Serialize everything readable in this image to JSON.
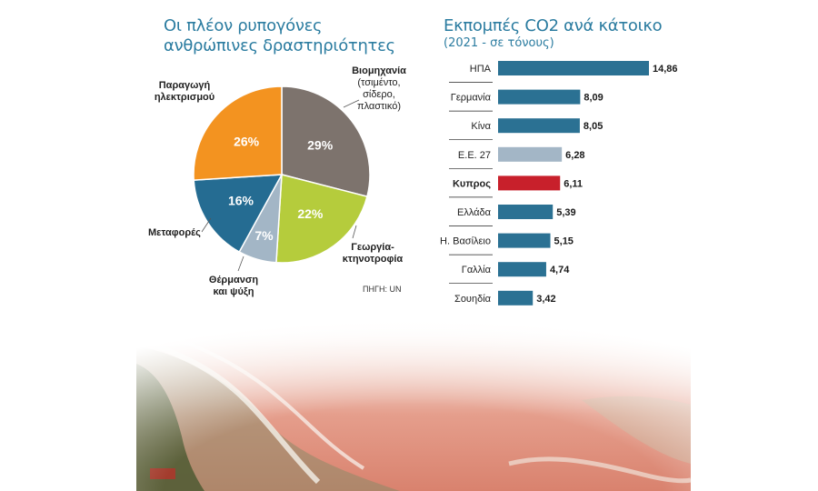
{
  "colors": {
    "title": "#2b7ca0",
    "industry": "#7d736d",
    "electricity": "#f39320",
    "agriculture": "#b5cc3c",
    "heating": "#a3b6c6",
    "transport": "#256c92",
    "bar_default": "#2b7193",
    "bar_eu": "#a3b6c6",
    "bar_cyprus": "#c8202b"
  },
  "chart_data": [
    {
      "type": "pie",
      "title": "Οι πλέον ρυπογόνες ανθρώπινες δραστηριότητες",
      "title_lines": [
        "Οι πλέον ρυπογόνες",
        "ανθρώπινες δραστηριότητες"
      ],
      "slices": [
        {
          "key": "industry",
          "label_lines": [
            "Βιομηχανία",
            "(τσιμέντο,",
            "σίδερο,",
            "πλαστικό)"
          ],
          "value": 29,
          "value_label": "29%",
          "color": "#7d736d"
        },
        {
          "key": "agriculture",
          "label_lines": [
            "Γεωργία-",
            "κτηνοτροφία"
          ],
          "value": 22,
          "value_label": "22%",
          "color": "#b5cc3c"
        },
        {
          "key": "heating",
          "label_lines": [
            "Θέρμανση",
            "και ψύξη"
          ],
          "value": 7,
          "value_label": "7%",
          "color": "#a3b6c6"
        },
        {
          "key": "transport",
          "label_lines": [
            "Μεταφορές"
          ],
          "value": 16,
          "value_label": "16%",
          "color": "#256c92"
        },
        {
          "key": "electricity",
          "label_lines": [
            "Παραγωγή",
            "ηλεκτρισμού"
          ],
          "value": 26,
          "value_label": "26%",
          "color": "#f39320"
        }
      ],
      "source": "ΠΗΓΗ: UN"
    },
    {
      "type": "bar",
      "orientation": "horizontal",
      "title": "Εκπομπές CO2 ανά κάτοικο",
      "subtitle": "(2021 - σε τόνους)",
      "categories": [
        "ΗΠΑ",
        "Γερμανία",
        "Κίνα",
        "Ε.Ε. 27",
        "Κυπρος",
        "Ελλάδα",
        "Η. Βασίλειο",
        "Γαλλία",
        "Σουηδία"
      ],
      "values": [
        14.86,
        8.09,
        8.05,
        6.28,
        6.11,
        5.39,
        5.15,
        4.74,
        3.42
      ],
      "value_labels": [
        "14,86",
        "8,09",
        "8,05",
        "6,28",
        "6,11",
        "5,39",
        "5,15",
        "4,74",
        "3,42"
      ],
      "highlight": {
        "Ε.Ε. 27": "#a3b6c6",
        "Κυπρος": "#c8202b"
      },
      "bold_categories": [
        "Κυπρος"
      ],
      "xlim": [
        0,
        15
      ]
    }
  ]
}
